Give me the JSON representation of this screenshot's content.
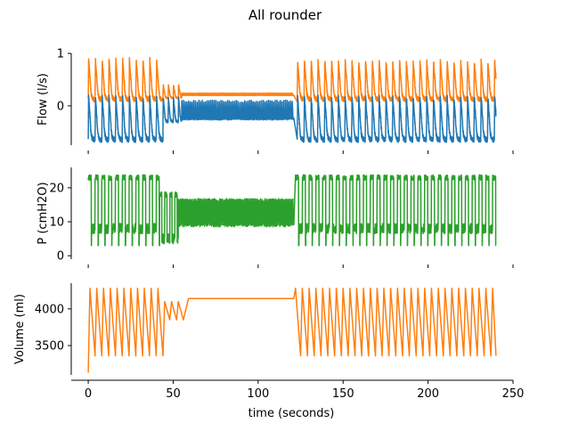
{
  "title": "All rounder",
  "chart_data": [
    {
      "type": "line",
      "ylabel": "Flow (l/s)",
      "yticks": [
        0,
        1
      ],
      "ylim": [
        -0.75,
        1.0
      ],
      "xlim": [
        -10,
        250
      ],
      "series": [
        {
          "color": "#ff7f0e",
          "style": "breathing-cycles",
          "segments": [
            {
              "x_start": 0,
              "x_end": 44,
              "period": 4.0,
              "peak": 0.88,
              "base": 0.12
            },
            {
              "x_start": 44,
              "x_end": 55,
              "period": 3.0,
              "peak": 0.4,
              "base": 0.15
            },
            {
              "x_start": 55,
              "x_end": 121,
              "period": 1.0,
              "peak": 0.25,
              "base": 0.2
            },
            {
              "x_start": 123,
              "x_end": 240,
              "period": 4.0,
              "peak": 0.85,
              "base": 0.12
            }
          ]
        },
        {
          "color": "#1f77b4",
          "style": "breathing-cycles",
          "segments": [
            {
              "x_start": 0,
              "x_end": 44,
              "period": 4.0,
              "peak": 0.17,
              "base": -0.65
            },
            {
              "x_start": 44,
              "x_end": 55,
              "period": 3.0,
              "peak": 0.15,
              "base": -0.3
            },
            {
              "x_start": 55,
              "x_end": 121,
              "period": 1.0,
              "peak": 0.12,
              "base": -0.25
            },
            {
              "x_start": 123,
              "x_end": 240,
              "period": 4.0,
              "peak": 0.17,
              "base": -0.65
            }
          ]
        }
      ]
    },
    {
      "type": "line",
      "ylabel": "P (cmH2O)",
      "yticks": [
        0,
        10,
        20
      ],
      "ylim": [
        -1,
        26
      ],
      "xlim": [
        -10,
        250
      ],
      "series": [
        {
          "color": "#2ca02c",
          "style": "square-cycles",
          "segments": [
            {
              "x_start": 0,
              "x_end": 42,
              "period": 4.0,
              "high": 23,
              "low": 8,
              "low_min": 3
            },
            {
              "x_start": 42,
              "x_end": 53,
              "period": 3.0,
              "high": 18,
              "low": 5,
              "low_min": 4
            },
            {
              "x_start": 53,
              "x_end": 121,
              "period": 1.0,
              "high": 16,
              "low": 10,
              "low_min": 9
            },
            {
              "x_start": 122,
              "x_end": 240,
              "period": 4.0,
              "high": 23,
              "low": 8,
              "low_min": 3
            }
          ]
        }
      ]
    },
    {
      "type": "line",
      "ylabel": "Volume (ml)",
      "yticks": [
        3500,
        4000
      ],
      "ylim": [
        3100,
        4350
      ],
      "xlim": [
        -10,
        250
      ],
      "xlabel": "time (seconds)",
      "xticks": [
        0,
        50,
        100,
        150,
        200,
        250
      ],
      "series": [
        {
          "color": "#ff7f0e",
          "style": "sawtooth",
          "start": {
            "x": 0,
            "y": 3130
          },
          "segments": [
            {
              "x_start": 0,
              "x_end": 44,
              "period": 4.0,
              "high": 4280,
              "low": 3360
            },
            {
              "x_start": 44,
              "x_end": 56,
              "period": 4.0,
              "high": 4100,
              "low": 3850
            },
            {
              "x_start": 56,
              "x_end": 121,
              "plateau": 4140
            },
            {
              "x_start": 121,
              "x_end": 240,
              "period": 4.0,
              "high": 4280,
              "low": 3360
            }
          ]
        }
      ]
    }
  ]
}
